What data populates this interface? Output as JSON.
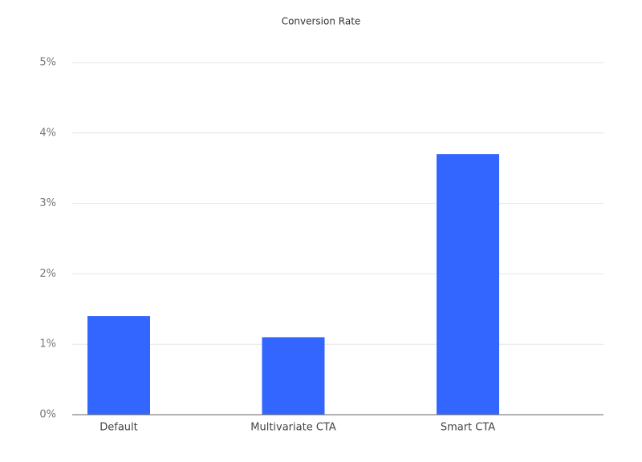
{
  "chart_data": {
    "type": "bar",
    "title": "Conversion Rate",
    "categories": [
      "Default",
      "Multivariate CTA",
      "Smart CTA"
    ],
    "values": [
      1.4,
      1.1,
      3.7
    ],
    "color": "#3366ff",
    "ylim": [
      0,
      5
    ],
    "yticks": [
      {
        "value": 0,
        "label": "0%"
      },
      {
        "value": 1,
        "label": "1%"
      },
      {
        "value": 2,
        "label": "2%"
      },
      {
        "value": 3,
        "label": "3%"
      },
      {
        "value": 4,
        "label": "4%"
      },
      {
        "value": 5,
        "label": "5%"
      }
    ],
    "grid": true
  }
}
